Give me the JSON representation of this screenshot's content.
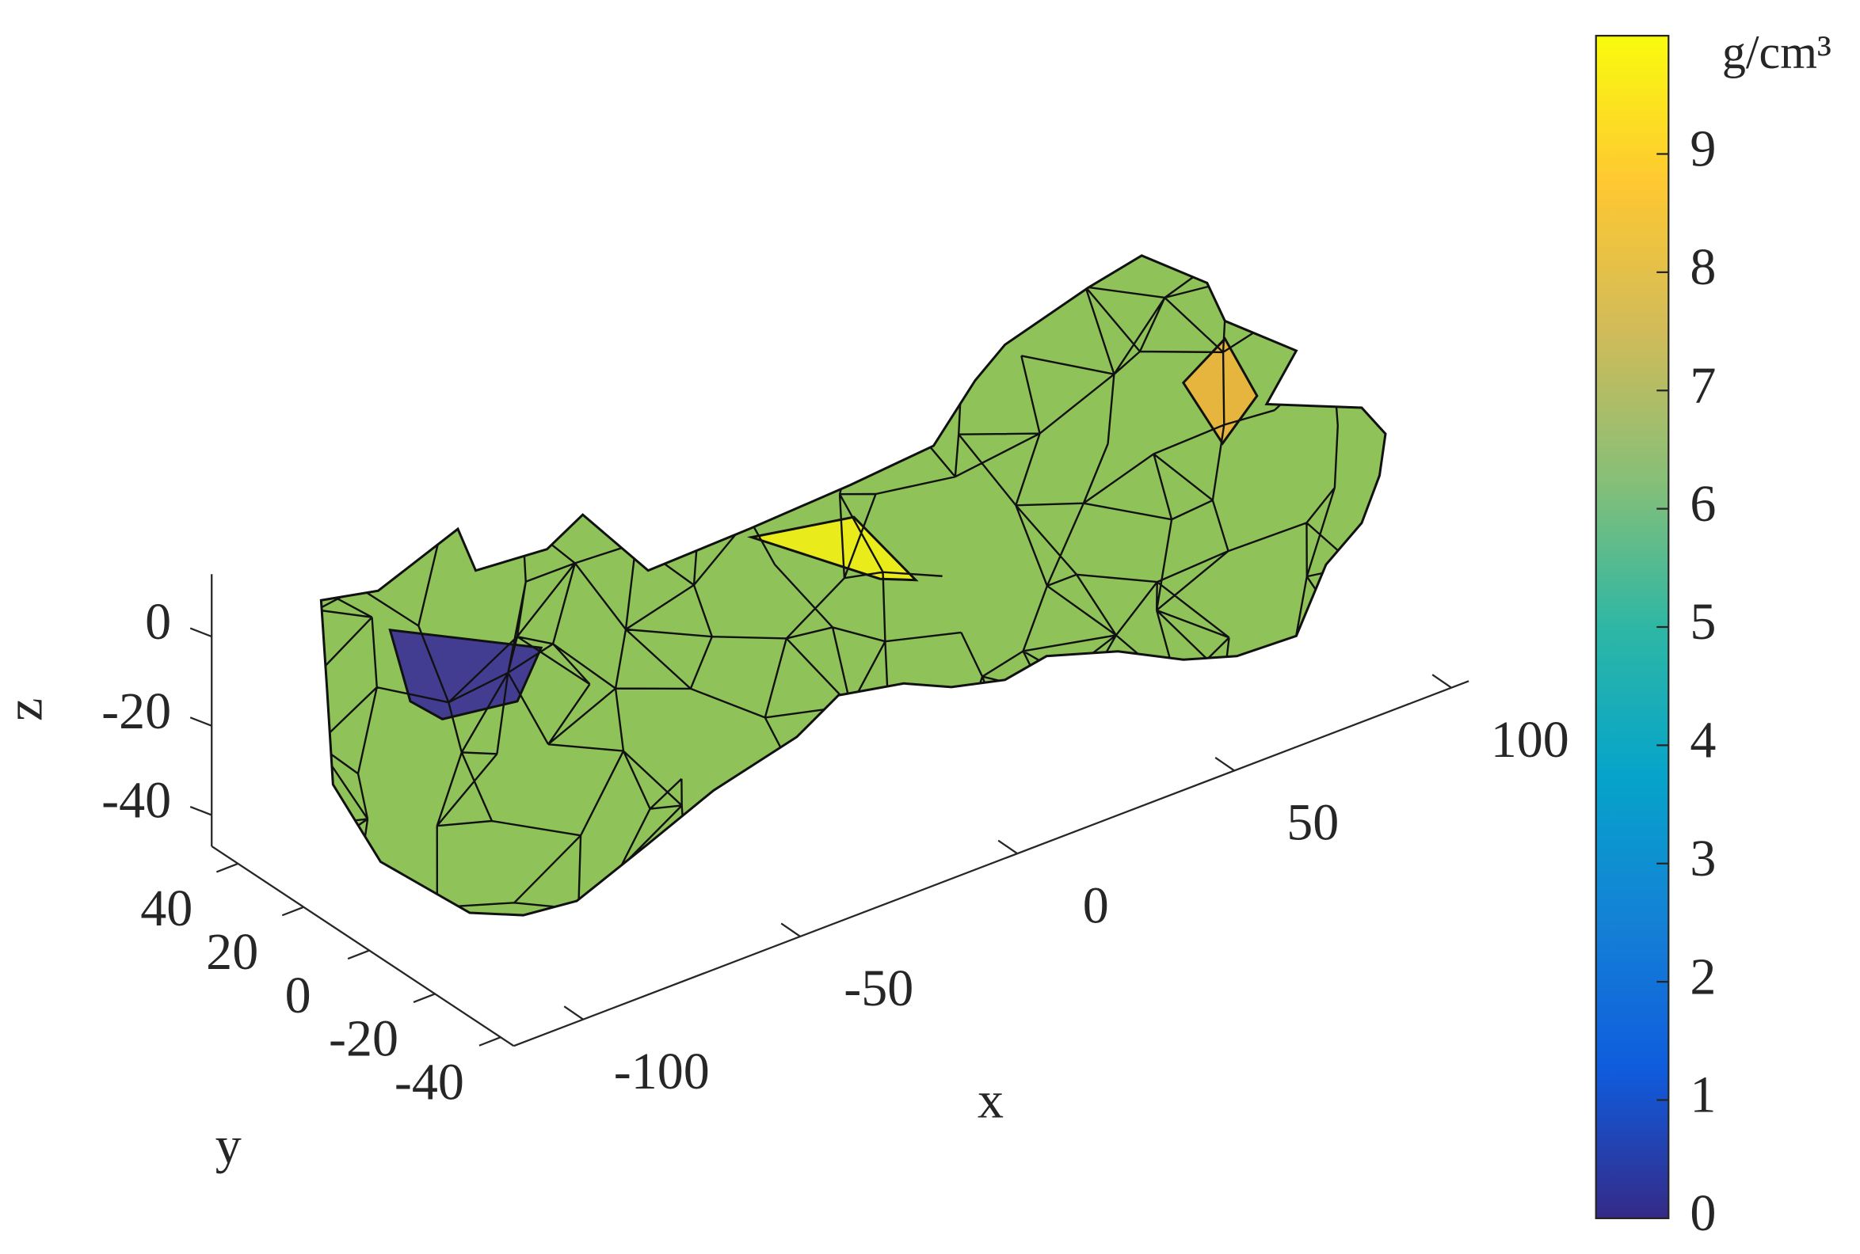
{
  "chart_data": {
    "type": "mesh3d",
    "color": "#86be4c",
    "xlabel": "x",
    "ylabel": "y",
    "zlabel": "z",
    "xlim": [
      -116,
      104
    ],
    "xticks": [
      -100,
      -50,
      0,
      50,
      100
    ],
    "ylim": [
      -44,
      48
    ],
    "yticks": [
      40,
      20,
      0,
      -20,
      -40
    ],
    "zlim": [
      -47,
      14
    ],
    "zticks": [
      0,
      -20,
      -40
    ],
    "colorbar": {
      "label": "g/cm³",
      "clim": [
        0,
        10
      ],
      "ticks": [
        0,
        1,
        2,
        3,
        4,
        5,
        6,
        7,
        8,
        9
      ],
      "colors": [
        "#352a87",
        "#0f5cdd",
        "#1481d6",
        "#06a4ca",
        "#2eb7a4",
        "#87bf77",
        "#d1bb59",
        "#fec832",
        "#f9fb0e"
      ]
    }
  }
}
